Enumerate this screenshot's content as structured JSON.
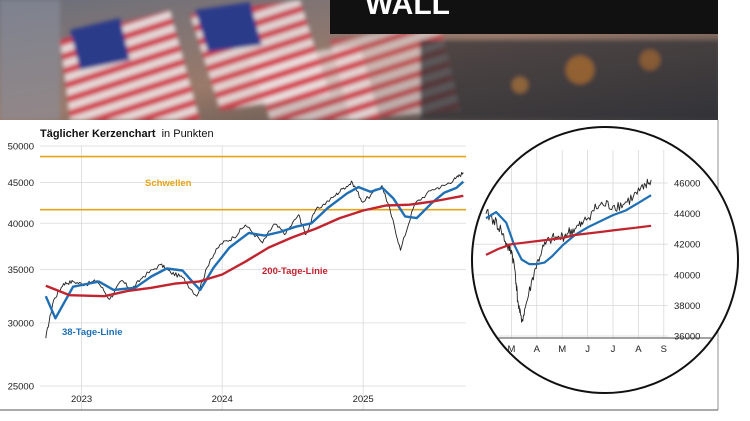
{
  "banner": {
    "sign_text": "WALL",
    "colors": {
      "flag_red": "#c8283a",
      "flag_blue": "#2c3a8a",
      "sign_black": "#111111"
    }
  },
  "chart_data": [
    {
      "type": "line",
      "name_prefix": "main",
      "title": "Täglicher Kerzenchart",
      "title_suffix": "in Punkten",
      "y_ticks": [
        25000,
        30000,
        35000,
        40000,
        45000,
        50000
      ],
      "y_tick_labels": [
        "25000",
        "30000",
        "35000",
        "40000",
        "45000",
        "50000"
      ],
      "x_ticks": [
        "2023",
        "2024",
        "2025"
      ],
      "ylim": [
        25000,
        50000
      ],
      "log_scale": true,
      "grid": true,
      "thresholds": {
        "label": "Schwellen",
        "values": [
          48500,
          41600
        ],
        "color": "#e8a317"
      },
      "series": [
        {
          "name": "",
          "color": "#222222",
          "x": [
            "2022-09-30",
            "2022-10-20",
            "2022-11-15",
            "2022-12-10",
            "2023-01-10",
            "2023-02-10",
            "2023-03-15",
            "2023-04-15",
            "2023-05-10",
            "2023-06-10",
            "2023-07-25",
            "2023-08-20",
            "2023-09-20",
            "2023-10-27",
            "2023-12-01",
            "2023-12-29",
            "2024-01-31",
            "2024-03-01",
            "2024-04-15",
            "2024-05-15",
            "2024-06-14",
            "2024-07-17",
            "2024-08-05",
            "2024-08-30",
            "2024-10-15",
            "2024-11-11",
            "2024-12-04",
            "2024-12-31",
            "2025-02-19",
            "2025-03-13",
            "2025-04-08",
            "2025-05-15",
            "2025-06-30",
            "2025-07-31",
            "2025-08-29",
            "2025-09-18"
          ],
          "y": [
            28700,
            32000,
            33600,
            33800,
            33500,
            33900,
            32100,
            33900,
            33000,
            34300,
            35500,
            34700,
            34200,
            32400,
            36000,
            37700,
            38400,
            39800,
            37800,
            39900,
            38800,
            41000,
            38700,
            41500,
            43100,
            44300,
            45000,
            42500,
            44600,
            41300,
            37000,
            42300,
            44100,
            44600,
            45500,
            46300
          ]
        },
        {
          "name": "38-Tage-Linie",
          "color": "#1f6fb5",
          "x": [
            "2022-09-30",
            "2022-10-25",
            "2022-12-10",
            "2023-02-15",
            "2023-03-25",
            "2023-05-20",
            "2023-07-01",
            "2023-08-10",
            "2023-09-20",
            "2023-10-20",
            "2023-11-05",
            "2023-12-10",
            "2024-01-20",
            "2024-03-10",
            "2024-04-20",
            "2024-05-30",
            "2024-07-10",
            "2024-08-20",
            "2024-10-01",
            "2024-11-20",
            "2024-12-20",
            "2025-01-20",
            "2025-02-20",
            "2025-03-20",
            "2025-04-20",
            "2025-05-20",
            "2025-06-30",
            "2025-07-31",
            "2025-08-31",
            "2025-09-18"
          ],
          "y": [
            32400,
            30400,
            33300,
            33800,
            33000,
            33200,
            34300,
            35100,
            34900,
            33600,
            33000,
            35200,
            37300,
            38900,
            38600,
            39000,
            39600,
            40000,
            41800,
            43600,
            44400,
            43800,
            44300,
            43000,
            40800,
            40600,
            42500,
            43700,
            44300,
            45100
          ]
        },
        {
          "name": "200-Tage-Linie",
          "color": "#c0242f",
          "x": [
            "2022-09-30",
            "2022-12-01",
            "2023-03-01",
            "2023-05-01",
            "2023-07-01",
            "2023-09-01",
            "2023-11-01",
            "2024-01-01",
            "2024-03-01",
            "2024-05-01",
            "2024-07-01",
            "2024-09-01",
            "2024-11-01",
            "2025-01-01",
            "2025-03-01",
            "2025-05-01",
            "2025-07-01",
            "2025-09-18"
          ],
          "y": [
            33400,
            32500,
            32400,
            32900,
            33200,
            33600,
            33800,
            34500,
            35800,
            37300,
            38400,
            39400,
            40600,
            41500,
            42100,
            42200,
            42600,
            43300
          ]
        }
      ],
      "annotations": [
        {
          "text": "200-Tage-Linie",
          "color": "#c0242f"
        },
        {
          "text": "38-Tage-Linie",
          "color": "#1f6fb5"
        }
      ]
    },
    {
      "type": "line",
      "name_prefix": "zoom",
      "y_ticks": [
        36000,
        38000,
        40000,
        42000,
        44000,
        46000
      ],
      "y_tick_labels": [
        "36000",
        "38000",
        "40000",
        "42000",
        "44000",
        "46000"
      ],
      "x_ticks": [
        "M",
        "A",
        "M",
        "J",
        "J",
        "A",
        "S"
      ],
      "ylim": [
        35600,
        47400
      ],
      "log_scale": false,
      "grid": true,
      "series": [
        {
          "name": "",
          "color": "#222222",
          "x": [
            0.0,
            0.3,
            0.6,
            0.85,
            1.0,
            1.15,
            1.25,
            1.4,
            1.6,
            1.9,
            2.2,
            2.5,
            2.9,
            3.2,
            3.5,
            3.8,
            4.2,
            4.6,
            5.0,
            5.4,
            5.8,
            6.2,
            6.5
          ],
          "y": [
            44000,
            43600,
            42900,
            41800,
            41600,
            40200,
            38300,
            36900,
            38200,
            40200,
            41600,
            42300,
            42400,
            42700,
            43000,
            43300,
            44200,
            44600,
            44500,
            44600,
            45100,
            45600,
            46200
          ]
        },
        {
          "name": "",
          "color": "#1f6fb5",
          "x": [
            0.0,
            0.4,
            0.8,
            1.1,
            1.4,
            1.7,
            2.0,
            2.3,
            2.6,
            3.0,
            3.5,
            4.0,
            4.5,
            5.0,
            5.5,
            6.0,
            6.5
          ],
          "y": [
            43700,
            44100,
            43400,
            42000,
            41000,
            40700,
            40700,
            40800,
            41200,
            41900,
            42600,
            43100,
            43500,
            43900,
            44200,
            44700,
            45200
          ]
        },
        {
          "name": "",
          "color": "#c0242f",
          "x": [
            0.0,
            0.5,
            1.0,
            1.5,
            2.0,
            2.5,
            3.0,
            3.5,
            4.0,
            4.5,
            5.0,
            5.5,
            6.0,
            6.5
          ],
          "y": [
            41300,
            41700,
            42000,
            42100,
            42200,
            42300,
            42400,
            42600,
            42700,
            42800,
            42900,
            43000,
            43100,
            43200
          ]
        }
      ]
    }
  ]
}
